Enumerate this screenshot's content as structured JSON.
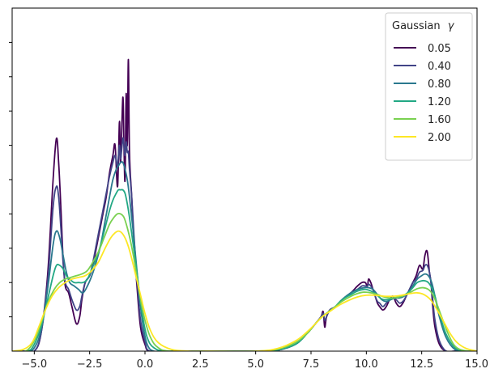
{
  "chart_data": {
    "type": "line",
    "title": "",
    "xlabel": "",
    "ylabel": "",
    "xlim": [
      -6.0,
      15.0
    ],
    "ylim": [
      0,
      1.0
    ],
    "grid": false,
    "x_ticks": [
      -5.0,
      -2.5,
      0.0,
      2.5,
      5.0,
      7.5,
      10.0,
      12.5,
      15.0
    ],
    "x_tick_labels": [
      "−5.0",
      "−2.5",
      "0.0",
      "2.5",
      "5.0",
      "7.5",
      "10.0",
      "12.5",
      "15.0"
    ],
    "y_ticks": [
      0.1,
      0.2,
      0.3,
      0.4,
      0.5,
      0.6,
      0.7,
      0.8,
      0.9
    ],
    "y_tick_labels_shown": false,
    "legend": {
      "placement": "top-right",
      "title_text": "Gaussian",
      "title_symbol": "γ",
      "entries": [
        "0.05",
        "0.40",
        "0.80",
        "1.20",
        "1.60",
        "2.00"
      ]
    },
    "series": [
      {
        "name": "0.05",
        "color": "#440154",
        "x": [
          -6.0,
          -5.4,
          -5.0,
          -4.7,
          -4.4,
          -4.15,
          -4.0,
          -3.9,
          -3.8,
          -3.7,
          -3.6,
          -3.45,
          -3.3,
          -3.1,
          -2.95,
          -2.85,
          -2.7,
          -2.5,
          -2.35,
          -2.2,
          -2.05,
          -1.9,
          -1.75,
          -1.6,
          -1.45,
          -1.35,
          -1.25,
          -1.2,
          -1.15,
          -1.1,
          -1.0,
          -0.95,
          -0.9,
          -0.85,
          -0.8,
          -0.75,
          -0.7,
          -0.6,
          -0.5,
          -0.35,
          -0.2,
          0.0,
          0.2,
          1.0,
          3.0,
          5.0,
          6.0,
          6.8,
          7.3,
          7.7,
          7.95,
          8.05,
          8.12,
          8.2,
          8.35,
          8.6,
          8.9,
          9.3,
          9.6,
          9.8,
          9.95,
          10.05,
          10.1,
          10.2,
          10.3,
          10.4,
          10.5,
          10.6,
          10.75,
          10.9,
          11.05,
          11.2,
          11.35,
          11.5,
          11.65,
          11.8,
          11.95,
          12.1,
          12.25,
          12.4,
          12.55,
          12.65,
          12.75,
          12.85,
          12.92,
          13.0,
          13.1,
          13.3,
          13.6,
          14.0,
          14.5,
          15.0
        ],
        "y": [
          0.0,
          0.0,
          0.0,
          0.05,
          0.22,
          0.5,
          0.62,
          0.55,
          0.42,
          0.27,
          0.19,
          0.17,
          0.13,
          0.08,
          0.1,
          0.15,
          0.2,
          0.22,
          0.25,
          0.3,
          0.35,
          0.4,
          0.45,
          0.52,
          0.57,
          0.6,
          0.48,
          0.55,
          0.67,
          0.55,
          0.74,
          0.6,
          0.5,
          0.75,
          0.6,
          0.85,
          0.58,
          0.45,
          0.32,
          0.18,
          0.07,
          0.02,
          0.0,
          0.0,
          0.0,
          0.0,
          0.003,
          0.02,
          0.05,
          0.08,
          0.1,
          0.115,
          0.07,
          0.1,
          0.12,
          0.13,
          0.15,
          0.17,
          0.19,
          0.2,
          0.2,
          0.19,
          0.21,
          0.2,
          0.18,
          0.16,
          0.14,
          0.13,
          0.12,
          0.13,
          0.15,
          0.16,
          0.14,
          0.13,
          0.14,
          0.16,
          0.18,
          0.2,
          0.22,
          0.25,
          0.24,
          0.28,
          0.29,
          0.23,
          0.2,
          0.13,
          0.07,
          0.02,
          0.0,
          0.0,
          0.0,
          0.0
        ]
      },
      {
        "name": "0.40",
        "color": "#414487",
        "x": [
          -6.0,
          -5.4,
          -5.0,
          -4.7,
          -4.4,
          -4.15,
          -4.0,
          -3.9,
          -3.8,
          -3.7,
          -3.6,
          -3.45,
          -3.3,
          -3.1,
          -2.95,
          -2.85,
          -2.7,
          -2.5,
          -2.35,
          -2.2,
          -2.05,
          -1.9,
          -1.75,
          -1.6,
          -1.45,
          -1.35,
          -1.25,
          -1.2,
          -1.15,
          -1.1,
          -1.0,
          -0.95,
          -0.9,
          -0.85,
          -0.8,
          -0.75,
          -0.7,
          -0.6,
          -0.5,
          -0.35,
          -0.2,
          0.0,
          0.2,
          1.0,
          3.0,
          5.0,
          6.0,
          6.8,
          7.3,
          7.7,
          7.95,
          8.05,
          8.12,
          8.2,
          8.35,
          8.6,
          8.9,
          9.3,
          9.6,
          9.8,
          9.95,
          10.05,
          10.1,
          10.2,
          10.3,
          10.4,
          10.5,
          10.6,
          10.75,
          10.9,
          11.05,
          11.2,
          11.35,
          11.5,
          11.65,
          11.8,
          11.95,
          12.1,
          12.25,
          12.4,
          12.55,
          12.65,
          12.75,
          12.85,
          12.92,
          13.0,
          13.1,
          13.3,
          13.6,
          14.0,
          14.5,
          15.0
        ],
        "y": [
          0.0,
          0.0,
          0.0,
          0.05,
          0.2,
          0.42,
          0.48,
          0.45,
          0.36,
          0.26,
          0.2,
          0.18,
          0.15,
          0.12,
          0.13,
          0.16,
          0.2,
          0.22,
          0.26,
          0.31,
          0.36,
          0.41,
          0.46,
          0.51,
          0.55,
          0.57,
          0.54,
          0.57,
          0.6,
          0.56,
          0.62,
          0.6,
          0.57,
          0.61,
          0.58,
          0.58,
          0.53,
          0.45,
          0.34,
          0.2,
          0.09,
          0.03,
          0.0,
          0.0,
          0.0,
          0.0,
          0.003,
          0.02,
          0.05,
          0.08,
          0.1,
          0.11,
          0.09,
          0.1,
          0.12,
          0.13,
          0.15,
          0.17,
          0.18,
          0.19,
          0.19,
          0.19,
          0.195,
          0.19,
          0.18,
          0.16,
          0.145,
          0.14,
          0.13,
          0.14,
          0.15,
          0.155,
          0.15,
          0.14,
          0.145,
          0.16,
          0.18,
          0.2,
          0.21,
          0.23,
          0.235,
          0.25,
          0.25,
          0.23,
          0.2,
          0.15,
          0.09,
          0.03,
          0.0,
          0.0,
          0.0,
          0.0
        ]
      },
      {
        "name": "0.80",
        "color": "#2a788e",
        "x": [
          -6.0,
          -5.3,
          -5.0,
          -4.7,
          -4.4,
          -4.15,
          -4.0,
          -3.85,
          -3.7,
          -3.55,
          -3.4,
          -3.2,
          -3.0,
          -2.8,
          -2.6,
          -2.4,
          -2.2,
          -2.0,
          -1.8,
          -1.6,
          -1.45,
          -1.3,
          -1.2,
          -1.1,
          -1.0,
          -0.9,
          -0.8,
          -0.7,
          -0.55,
          -0.4,
          -0.25,
          -0.1,
          0.1,
          0.4,
          1.0,
          3.0,
          5.0,
          6.0,
          6.8,
          7.3,
          7.7,
          8.0,
          8.3,
          8.6,
          8.9,
          9.3,
          9.6,
          9.9,
          10.1,
          10.3,
          10.5,
          10.7,
          10.9,
          11.1,
          11.3,
          11.5,
          11.7,
          11.9,
          12.1,
          12.3,
          12.5,
          12.65,
          12.8,
          12.95,
          13.1,
          13.3,
          13.6,
          14.0,
          14.5,
          15.0
        ],
        "y": [
          0.0,
          0.0,
          0.01,
          0.06,
          0.18,
          0.31,
          0.35,
          0.33,
          0.28,
          0.23,
          0.2,
          0.19,
          0.18,
          0.17,
          0.19,
          0.22,
          0.26,
          0.31,
          0.38,
          0.45,
          0.5,
          0.53,
          0.54,
          0.55,
          0.55,
          0.53,
          0.5,
          0.45,
          0.36,
          0.26,
          0.16,
          0.08,
          0.02,
          0.0,
          0.0,
          0.0,
          0.0,
          0.003,
          0.02,
          0.05,
          0.08,
          0.1,
          0.115,
          0.13,
          0.15,
          0.17,
          0.18,
          0.185,
          0.185,
          0.18,
          0.165,
          0.15,
          0.145,
          0.15,
          0.155,
          0.155,
          0.16,
          0.17,
          0.19,
          0.21,
          0.22,
          0.225,
          0.22,
          0.2,
          0.16,
          0.1,
          0.04,
          0.005,
          0.0,
          0.0
        ]
      },
      {
        "name": "1.20",
        "color": "#22a884",
        "x": [
          -6.0,
          -5.3,
          -5.0,
          -4.7,
          -4.4,
          -4.15,
          -4.0,
          -3.85,
          -3.7,
          -3.55,
          -3.4,
          -3.2,
          -3.0,
          -2.8,
          -2.6,
          -2.4,
          -2.2,
          -2.0,
          -1.8,
          -1.6,
          -1.45,
          -1.3,
          -1.2,
          -1.1,
          -1.0,
          -0.9,
          -0.8,
          -0.7,
          -0.55,
          -0.4,
          -0.25,
          -0.1,
          0.1,
          0.4,
          1.0,
          3.0,
          5.0,
          6.0,
          6.8,
          7.3,
          7.7,
          8.0,
          8.3,
          8.6,
          8.9,
          9.3,
          9.6,
          9.9,
          10.1,
          10.3,
          10.5,
          10.7,
          10.9,
          11.1,
          11.3,
          11.5,
          11.7,
          11.9,
          12.1,
          12.3,
          12.5,
          12.65,
          12.8,
          12.95,
          13.1,
          13.3,
          13.6,
          14.0,
          14.5,
          15.0
        ],
        "y": [
          0.0,
          0.0,
          0.02,
          0.07,
          0.15,
          0.22,
          0.25,
          0.25,
          0.24,
          0.22,
          0.21,
          0.2,
          0.2,
          0.2,
          0.21,
          0.24,
          0.27,
          0.31,
          0.36,
          0.41,
          0.44,
          0.46,
          0.47,
          0.47,
          0.47,
          0.46,
          0.43,
          0.39,
          0.32,
          0.25,
          0.17,
          0.1,
          0.04,
          0.01,
          0.0,
          0.0,
          0.0,
          0.004,
          0.02,
          0.05,
          0.08,
          0.1,
          0.115,
          0.13,
          0.15,
          0.165,
          0.175,
          0.18,
          0.178,
          0.172,
          0.162,
          0.152,
          0.15,
          0.152,
          0.156,
          0.158,
          0.163,
          0.172,
          0.185,
          0.2,
          0.205,
          0.205,
          0.2,
          0.185,
          0.16,
          0.11,
          0.05,
          0.01,
          0.0,
          0.0
        ]
      },
      {
        "name": "1.60",
        "color": "#7ad151",
        "x": [
          -6.0,
          -5.4,
          -5.0,
          -4.7,
          -4.4,
          -4.1,
          -3.85,
          -3.6,
          -3.35,
          -3.1,
          -2.85,
          -2.6,
          -2.35,
          -2.1,
          -1.85,
          -1.6,
          -1.4,
          -1.25,
          -1.1,
          -0.95,
          -0.8,
          -0.65,
          -0.5,
          -0.35,
          -0.2,
          0.0,
          0.25,
          0.6,
          1.2,
          3.0,
          5.0,
          6.0,
          6.8,
          7.3,
          7.7,
          8.0,
          8.3,
          8.6,
          8.9,
          9.3,
          9.6,
          9.9,
          10.2,
          10.5,
          10.8,
          11.1,
          11.4,
          11.7,
          12.0,
          12.3,
          12.55,
          12.8,
          13.0,
          13.2,
          13.4,
          13.7,
          14.0,
          14.4,
          15.0
        ],
        "y": [
          0.0,
          0.0,
          0.03,
          0.08,
          0.14,
          0.18,
          0.2,
          0.21,
          0.215,
          0.22,
          0.225,
          0.235,
          0.26,
          0.29,
          0.33,
          0.37,
          0.39,
          0.4,
          0.4,
          0.39,
          0.36,
          0.32,
          0.27,
          0.21,
          0.15,
          0.09,
          0.04,
          0.01,
          0.0,
          0.0,
          0.0,
          0.006,
          0.025,
          0.05,
          0.08,
          0.1,
          0.115,
          0.13,
          0.145,
          0.16,
          0.168,
          0.172,
          0.17,
          0.165,
          0.158,
          0.155,
          0.157,
          0.162,
          0.172,
          0.182,
          0.185,
          0.18,
          0.165,
          0.135,
          0.1,
          0.05,
          0.015,
          0.002,
          0.0
        ]
      },
      {
        "name": "2.00",
        "color": "#fde725",
        "x": [
          -6.0,
          -5.5,
          -5.1,
          -4.8,
          -4.5,
          -4.2,
          -3.9,
          -3.6,
          -3.3,
          -3.0,
          -2.7,
          -2.4,
          -2.1,
          -1.8,
          -1.55,
          -1.35,
          -1.2,
          -1.05,
          -0.9,
          -0.75,
          -0.6,
          -0.45,
          -0.3,
          -0.15,
          0.0,
          0.25,
          0.6,
          1.2,
          2.0,
          3.0,
          5.0,
          6.0,
          6.8,
          7.3,
          7.7,
          8.0,
          8.4,
          8.8,
          9.2,
          9.6,
          10.0,
          10.4,
          10.8,
          11.2,
          11.6,
          12.0,
          12.3,
          12.6,
          12.9,
          13.2,
          13.5,
          13.8,
          14.1,
          14.5,
          15.0
        ],
        "y": [
          0.0,
          0.005,
          0.025,
          0.07,
          0.12,
          0.16,
          0.185,
          0.2,
          0.21,
          0.215,
          0.22,
          0.235,
          0.26,
          0.3,
          0.33,
          0.345,
          0.35,
          0.345,
          0.33,
          0.305,
          0.27,
          0.23,
          0.19,
          0.15,
          0.11,
          0.06,
          0.025,
          0.005,
          0.0,
          0.0,
          0.0,
          0.008,
          0.03,
          0.055,
          0.08,
          0.1,
          0.118,
          0.135,
          0.148,
          0.158,
          0.163,
          0.163,
          0.16,
          0.16,
          0.163,
          0.168,
          0.17,
          0.165,
          0.15,
          0.12,
          0.085,
          0.05,
          0.025,
          0.008,
          0.0
        ]
      }
    ]
  }
}
